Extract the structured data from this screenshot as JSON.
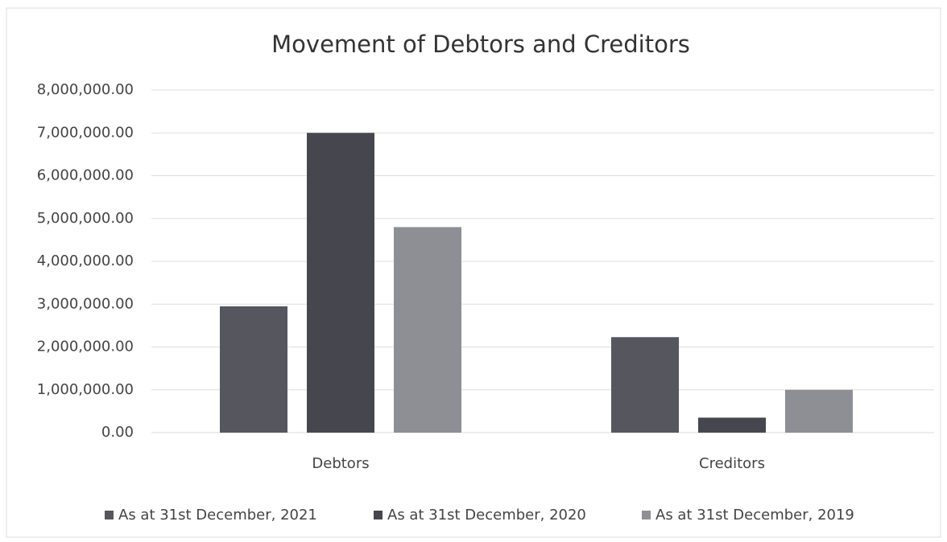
{
  "chart_data": {
    "type": "bar",
    "title": "Movement of Debtors  and Creditors",
    "categories": [
      "Debtors",
      "Creditors"
    ],
    "series": [
      {
        "name": "As at 31st December, 2021",
        "color": "#55565e",
        "values": [
          2950000,
          2230000
        ]
      },
      {
        "name": "As at 31st December, 2020",
        "color": "#46474e",
        "values": [
          7000000,
          350000
        ]
      },
      {
        "name": "As at 31st December, 2019",
        "color": "#8e8f95",
        "values": [
          4800000,
          1000000
        ]
      }
    ],
    "ylim": [
      0,
      8000000
    ],
    "yticks": [
      {
        "value": 0,
        "label": "0.00"
      },
      {
        "value": 1000000,
        "label": "1,000,000.00"
      },
      {
        "value": 2000000,
        "label": "2,000,000.00"
      },
      {
        "value": 3000000,
        "label": "3,000,000.00"
      },
      {
        "value": 4000000,
        "label": "4,000,000.00"
      },
      {
        "value": 5000000,
        "label": "5,000,000.00"
      },
      {
        "value": 6000000,
        "label": "6,000,000.00"
      },
      {
        "value": 7000000,
        "label": "7,000,000.00"
      },
      {
        "value": 8000000,
        "label": "8,000,000.00"
      }
    ],
    "grid": true,
    "legend": "bottom"
  }
}
